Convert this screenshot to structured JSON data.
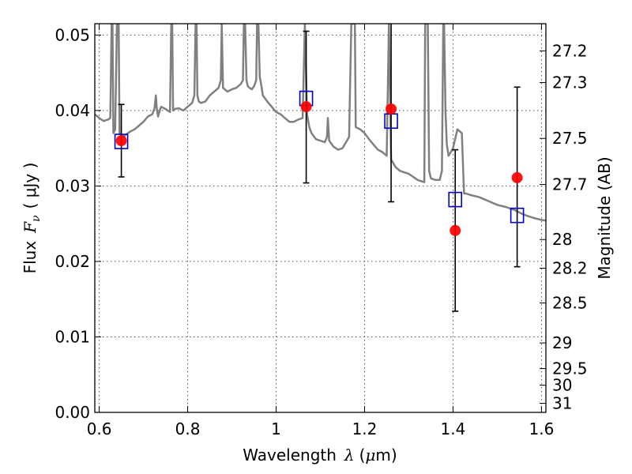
{
  "chart_data": {
    "type": "scatter",
    "xlabel_text": "Wavelength",
    "xlabel_symbol": "λ",
    "xlabel_unit_open": "(",
    "xlabel_unit_mu": "μ",
    "xlabel_unit_rest": "m)",
    "ylabel_text": "Flux",
    "ylabel_symbol": "F",
    "ylabel_sub": "ν",
    "ylabel_unit": "( μJy )",
    "y2label": "Magnitude (AB)",
    "xlim": [
      0.59,
      1.61
    ],
    "ylim": [
      0.0,
      0.0515
    ],
    "grid": true,
    "x_ticks": [
      {
        "v": 0.6,
        "t": "0.6"
      },
      {
        "v": 0.8,
        "t": "0.8"
      },
      {
        "v": 1.0,
        "t": "1"
      },
      {
        "v": 1.2,
        "t": "1.2"
      },
      {
        "v": 1.4,
        "t": "1.4"
      },
      {
        "v": 1.6,
        "t": "1.6"
      }
    ],
    "y_ticks": [
      {
        "v": 0.0,
        "t": "0.00"
      },
      {
        "v": 0.01,
        "t": "0.01"
      },
      {
        "v": 0.02,
        "t": "0.02"
      },
      {
        "v": 0.03,
        "t": "0.03"
      },
      {
        "v": 0.04,
        "t": "0.04"
      },
      {
        "v": 0.05,
        "t": "0.05"
      }
    ],
    "mag_ticks": [
      {
        "f": 0.0479,
        "t": "27.2"
      },
      {
        "f": 0.0437,
        "t": "27.3"
      },
      {
        "f": 0.0363,
        "t": "27.5"
      },
      {
        "f": 0.0302,
        "t": "27.7"
      },
      {
        "f": 0.0229,
        "t": "28"
      },
      {
        "f": 0.0191,
        "t": "28.2"
      },
      {
        "f": 0.0145,
        "t": "28.5"
      },
      {
        "f": 0.0092,
        "t": "29"
      },
      {
        "f": 0.0058,
        "t": "29.5"
      },
      {
        "f": 0.0036,
        "t": "30"
      },
      {
        "f": 0.0012,
        "t": "31"
      }
    ],
    "series": [
      {
        "kind": "line",
        "color": "#808080",
        "x": [
          0.59,
          0.6,
          0.61,
          0.62,
          0.625,
          0.628,
          0.63,
          0.632,
          0.636,
          0.64,
          0.642,
          0.644,
          0.646,
          0.65,
          0.655,
          0.66,
          0.665,
          0.67,
          0.68,
          0.69,
          0.7,
          0.71,
          0.72,
          0.725,
          0.728,
          0.73,
          0.733,
          0.736,
          0.74,
          0.75,
          0.76,
          0.763,
          0.765,
          0.767,
          0.77,
          0.78,
          0.79,
          0.8,
          0.81,
          0.815,
          0.818,
          0.82,
          0.822,
          0.825,
          0.83,
          0.84,
          0.85,
          0.86,
          0.87,
          0.875,
          0.877,
          0.88,
          0.89,
          0.9,
          0.91,
          0.92,
          0.925,
          0.927,
          0.93,
          0.933,
          0.936,
          0.94,
          0.945,
          0.95,
          0.955,
          0.957,
          0.96,
          0.963,
          0.966,
          0.97,
          0.98,
          0.99,
          1.0,
          1.01,
          1.02,
          1.03,
          1.04,
          1.05,
          1.06,
          1.065,
          1.07,
          1.075,
          1.08,
          1.09,
          1.1,
          1.11,
          1.115,
          1.117,
          1.12,
          1.13,
          1.14,
          1.15,
          1.16,
          1.165,
          1.17,
          1.175,
          1.178,
          1.18,
          1.19,
          1.2,
          1.21,
          1.22,
          1.23,
          1.24,
          1.25,
          1.255,
          1.26,
          1.265,
          1.27,
          1.28,
          1.29,
          1.3,
          1.31,
          1.32,
          1.33,
          1.335,
          1.337,
          1.34,
          1.343,
          1.346,
          1.35,
          1.36,
          1.37,
          1.375,
          1.378,
          1.38,
          1.383,
          1.386,
          1.39,
          1.4,
          1.41,
          1.42,
          1.425,
          1.43,
          1.44,
          1.46,
          1.48,
          1.5,
          1.52,
          1.54,
          1.56,
          1.58,
          1.6,
          1.61
        ],
        "y": [
          0.0395,
          0.039,
          0.0386,
          0.0388,
          0.039,
          0.0515,
          0.0515,
          0.037,
          0.0375,
          0.0515,
          0.0515,
          0.0515,
          0.037,
          0.0368,
          0.0365,
          0.0368,
          0.037,
          0.0372,
          0.0375,
          0.038,
          0.0385,
          0.0392,
          0.0395,
          0.0403,
          0.042,
          0.0403,
          0.0392,
          0.0398,
          0.0405,
          0.0402,
          0.0398,
          0.0515,
          0.0515,
          0.04,
          0.0402,
          0.0403,
          0.04,
          0.0405,
          0.041,
          0.042,
          0.0515,
          0.0515,
          0.042,
          0.0412,
          0.041,
          0.0412,
          0.042,
          0.0425,
          0.043,
          0.044,
          0.0515,
          0.043,
          0.0425,
          0.0428,
          0.043,
          0.0435,
          0.044,
          0.0515,
          0.0515,
          0.044,
          0.0432,
          0.043,
          0.0428,
          0.0432,
          0.044,
          0.0515,
          0.0515,
          0.0445,
          0.0435,
          0.042,
          0.0412,
          0.0405,
          0.0398,
          0.0395,
          0.039,
          0.0385,
          0.0385,
          0.0388,
          0.039,
          0.0515,
          0.0395,
          0.0378,
          0.037,
          0.0362,
          0.036,
          0.0358,
          0.0365,
          0.039,
          0.036,
          0.0352,
          0.0348,
          0.035,
          0.036,
          0.0365,
          0.0515,
          0.0515,
          0.0515,
          0.0378,
          0.0375,
          0.037,
          0.0362,
          0.0355,
          0.0348,
          0.0345,
          0.034,
          0.0515,
          0.0335,
          0.033,
          0.0325,
          0.032,
          0.0318,
          0.0316,
          0.0312,
          0.0308,
          0.0306,
          0.0305,
          0.0515,
          0.0515,
          0.0515,
          0.032,
          0.031,
          0.0308,
          0.0308,
          0.032,
          0.0515,
          0.0515,
          0.04,
          0.0355,
          0.034,
          0.035,
          0.0375,
          0.037,
          0.029,
          0.029,
          0.0288,
          0.0285,
          0.028,
          0.0275,
          0.0272,
          0.0268,
          0.0262,
          0.0258,
          0.0255,
          0.0254
        ]
      },
      {
        "kind": "markers-square",
        "color": "#0000cc",
        "x": [
          0.65,
          1.068,
          1.26,
          1.405,
          1.545
        ],
        "y": [
          0.0359,
          0.0416,
          0.0386,
          0.0282,
          0.0261
        ]
      },
      {
        "kind": "markers-circle-errorbar",
        "color": "#ff0000",
        "x": [
          0.65,
          1.068,
          1.26,
          1.405,
          1.545
        ],
        "y": [
          0.036,
          0.0405,
          0.0402,
          0.0241,
          0.0311
        ],
        "yerr_low": [
          0.0312,
          0.0304,
          0.0279,
          0.0134,
          0.0193
        ],
        "yerr_high": [
          0.0408,
          0.0505,
          0.0525,
          0.0348,
          0.0431
        ]
      }
    ]
  }
}
